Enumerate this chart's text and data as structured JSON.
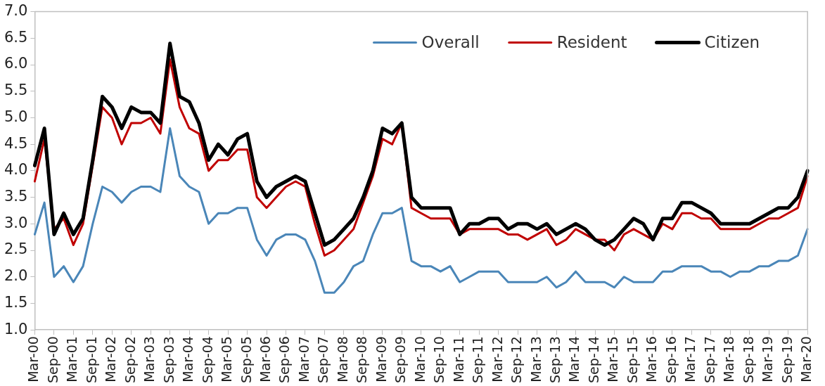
{
  "chart_data": {
    "type": "line",
    "categories": [
      "Mar-00",
      null,
      "Sep-00",
      null,
      "Mar-01",
      null,
      "Sep-01",
      null,
      "Mar-02",
      null,
      "Sep-02",
      null,
      "Mar-03",
      null,
      "Sep-03",
      null,
      "Mar-04",
      null,
      "Sep-04",
      null,
      "Mar-05",
      null,
      "Sep-05",
      null,
      "Mar-06",
      null,
      "Sep-06",
      null,
      "Mar-07",
      null,
      "Sep-07",
      null,
      "Mar-08",
      null,
      "Sep-08",
      null,
      "Mar-09",
      null,
      "Sep-09",
      null,
      "Mar-10",
      null,
      "Sep-10",
      null,
      "Mar-11",
      null,
      "Sep-11",
      null,
      "Mar-12",
      null,
      "Sep-12",
      null,
      "Mar-13",
      null,
      "Sep-13",
      null,
      "Mar-14",
      null,
      "Sep-14",
      null,
      "Mar-15",
      null,
      "Sep-15",
      null,
      "Mar-16",
      null,
      "Sep-16",
      null,
      "Mar-17",
      null,
      "Sep-17",
      null,
      "Mar-18",
      null,
      "Sep-18",
      null,
      "Mar-19",
      null,
      "Sep-19",
      null,
      "Mar-20"
    ],
    "series": [
      {
        "name": "Overall",
        "color": "#4a86b8",
        "values": [
          2.8,
          3.4,
          2.0,
          2.2,
          1.9,
          2.2,
          3.0,
          3.7,
          3.6,
          3.4,
          3.6,
          3.7,
          3.7,
          3.6,
          4.8,
          3.9,
          3.7,
          3.6,
          3.0,
          3.2,
          3.2,
          3.3,
          3.3,
          2.7,
          2.4,
          2.7,
          2.8,
          2.8,
          2.7,
          2.3,
          1.7,
          1.7,
          1.9,
          2.2,
          2.3,
          2.8,
          3.2,
          3.2,
          3.3,
          2.3,
          2.2,
          2.2,
          2.1,
          2.2,
          1.9,
          2.0,
          2.1,
          2.1,
          2.1,
          1.9,
          1.9,
          1.9,
          1.9,
          2.0,
          1.8,
          1.9,
          2.1,
          1.9,
          1.9,
          1.9,
          1.8,
          2.0,
          1.9,
          1.9,
          1.9,
          2.1,
          2.1,
          2.2,
          2.2,
          2.2,
          2.1,
          2.1,
          2.0,
          2.1,
          2.1,
          2.2,
          2.2,
          2.3,
          2.3,
          2.4,
          2.9
        ]
      },
      {
        "name": "Resident",
        "color": "#c00000",
        "values": [
          3.8,
          4.6,
          2.9,
          3.1,
          2.6,
          3.0,
          4.1,
          5.2,
          5.0,
          4.5,
          4.9,
          4.9,
          5.0,
          4.7,
          6.1,
          5.2,
          4.8,
          4.7,
          4.0,
          4.2,
          4.2,
          4.4,
          4.4,
          3.5,
          3.3,
          3.5,
          3.7,
          3.8,
          3.7,
          3.0,
          2.4,
          2.5,
          2.7,
          2.9,
          3.4,
          3.9,
          4.6,
          4.5,
          4.9,
          3.3,
          3.2,
          3.1,
          3.1,
          3.1,
          2.8,
          2.9,
          2.9,
          2.9,
          2.9,
          2.8,
          2.8,
          2.7,
          2.8,
          2.9,
          2.6,
          2.7,
          2.9,
          2.8,
          2.7,
          2.7,
          2.5,
          2.8,
          2.9,
          2.8,
          2.7,
          3.0,
          2.9,
          3.2,
          3.2,
          3.1,
          3.1,
          2.9,
          2.9,
          2.9,
          2.9,
          3.0,
          3.1,
          3.1,
          3.2,
          3.3,
          3.9
        ]
      },
      {
        "name": "Citizen",
        "color": "#000000",
        "values": [
          4.1,
          4.8,
          2.8,
          3.2,
          2.8,
          3.1,
          4.2,
          5.4,
          5.2,
          4.8,
          5.2,
          5.1,
          5.1,
          4.9,
          6.4,
          5.4,
          5.3,
          4.9,
          4.2,
          4.5,
          4.3,
          4.6,
          4.7,
          3.8,
          3.5,
          3.7,
          3.8,
          3.9,
          3.8,
          3.2,
          2.6,
          2.7,
          2.9,
          3.1,
          3.5,
          4.0,
          4.8,
          4.7,
          4.9,
          3.5,
          3.3,
          3.3,
          3.3,
          3.3,
          2.8,
          3.0,
          3.0,
          3.1,
          3.1,
          2.9,
          3.0,
          3.0,
          2.9,
          3.0,
          2.8,
          2.9,
          3.0,
          2.9,
          2.7,
          2.6,
          2.7,
          2.9,
          3.1,
          3.0,
          2.7,
          3.1,
          3.1,
          3.4,
          3.4,
          3.3,
          3.2,
          3.0,
          3.0,
          3.0,
          3.0,
          3.1,
          3.2,
          3.3,
          3.3,
          3.5,
          4.0
        ]
      }
    ],
    "ylim": [
      1.0,
      7.0
    ],
    "yticks": [
      {
        "value": 1.0,
        "label": "1.0"
      },
      {
        "value": 1.5,
        "label": "1.5"
      },
      {
        "value": 2.0,
        "label": "2.0"
      },
      {
        "value": 2.5,
        "label": "2.5"
      },
      {
        "value": 3.0,
        "label": "3.0"
      },
      {
        "value": 3.5,
        "label": "3.5"
      },
      {
        "value": 4.0,
        "label": "4.0"
      },
      {
        "value": 4.5,
        "label": "4.5"
      },
      {
        "value": 5.0,
        "label": "5.0"
      },
      {
        "value": 5.5,
        "label": "5.5"
      },
      {
        "value": 6.0,
        "label": "6.0"
      },
      {
        "value": 6.5,
        "label": "6.5"
      },
      {
        "value": 7.0,
        "label": "7.0"
      }
    ],
    "grid": false,
    "legend": "top right",
    "marker": "none",
    "line_style": "solid"
  }
}
